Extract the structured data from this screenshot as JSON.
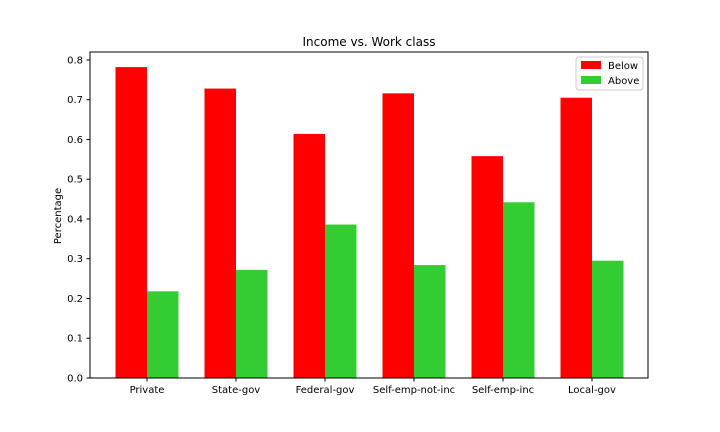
{
  "chart_data": {
    "type": "bar",
    "title": "Income vs. Work class",
    "xlabel": "",
    "ylabel": "Percentage",
    "categories": [
      "Private",
      "State-gov",
      "Federal-gov",
      "Self-emp-not-inc",
      "Self-emp-inc",
      "Local-gov"
    ],
    "series": [
      {
        "name": "Below",
        "color": "#ff0000",
        "values": [
          0.782,
          0.728,
          0.614,
          0.716,
          0.558,
          0.705
        ]
      },
      {
        "name": "Above",
        "color": "#33cc33",
        "values": [
          0.218,
          0.272,
          0.386,
          0.284,
          0.442,
          0.295
        ]
      }
    ],
    "ylim": [
      0,
      0.82
    ],
    "yticks": [
      0.0,
      0.1,
      0.2,
      0.3,
      0.4,
      0.5,
      0.6,
      0.7,
      0.8
    ],
    "ytick_labels": [
      "0.0",
      "0.1",
      "0.2",
      "0.3",
      "0.4",
      "0.5",
      "0.6",
      "0.7",
      "0.8"
    ],
    "grid": false,
    "legend_position": "top-right"
  }
}
